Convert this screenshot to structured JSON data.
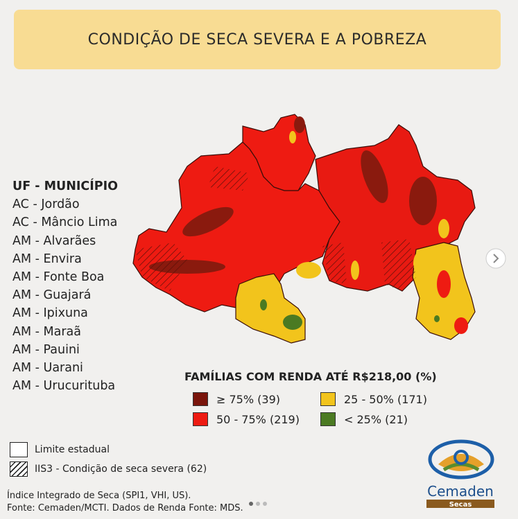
{
  "title": "CONDIÇÃO DE SECA SEVERA E A POBREZA",
  "municipios": {
    "heading": "UF - MUNICÍPIO",
    "items": [
      "AC - Jordão",
      "AC - Mâncio Lima",
      "AM - Alvarães",
      "AM - Envira",
      "AM - Fonte Boa",
      "AM - Guajará",
      "AM - Ipixuna",
      "AM - Maraã",
      "AM - Pauini",
      "AM - Uarani",
      "AM - Urucurituba"
    ]
  },
  "legend": {
    "title": "FAMÍLIAS COM RENDA ATÉ R$218,00 (%)",
    "classes": [
      {
        "label": "≥ 75% (39)",
        "color": "#7a150c"
      },
      {
        "label": "25 - 50% (171)",
        "color": "#f2c41c"
      },
      {
        "label": "50 - 75% (219)",
        "color": "#ee1b12"
      },
      {
        "label": "< 25% (21)",
        "color": "#4b7a22"
      }
    ]
  },
  "boundaries": [
    "Limite estadual",
    "IIS3 - Condição de seca severa (62)"
  ],
  "source": [
    "Índice Integrado de Seca (SPI1, VHI, US).",
    "Fonte: Cemaden/MCTI. Dados de Renda Fonte: MDS."
  ],
  "logo": {
    "name": "Cemaden",
    "tag": "Secas"
  }
}
